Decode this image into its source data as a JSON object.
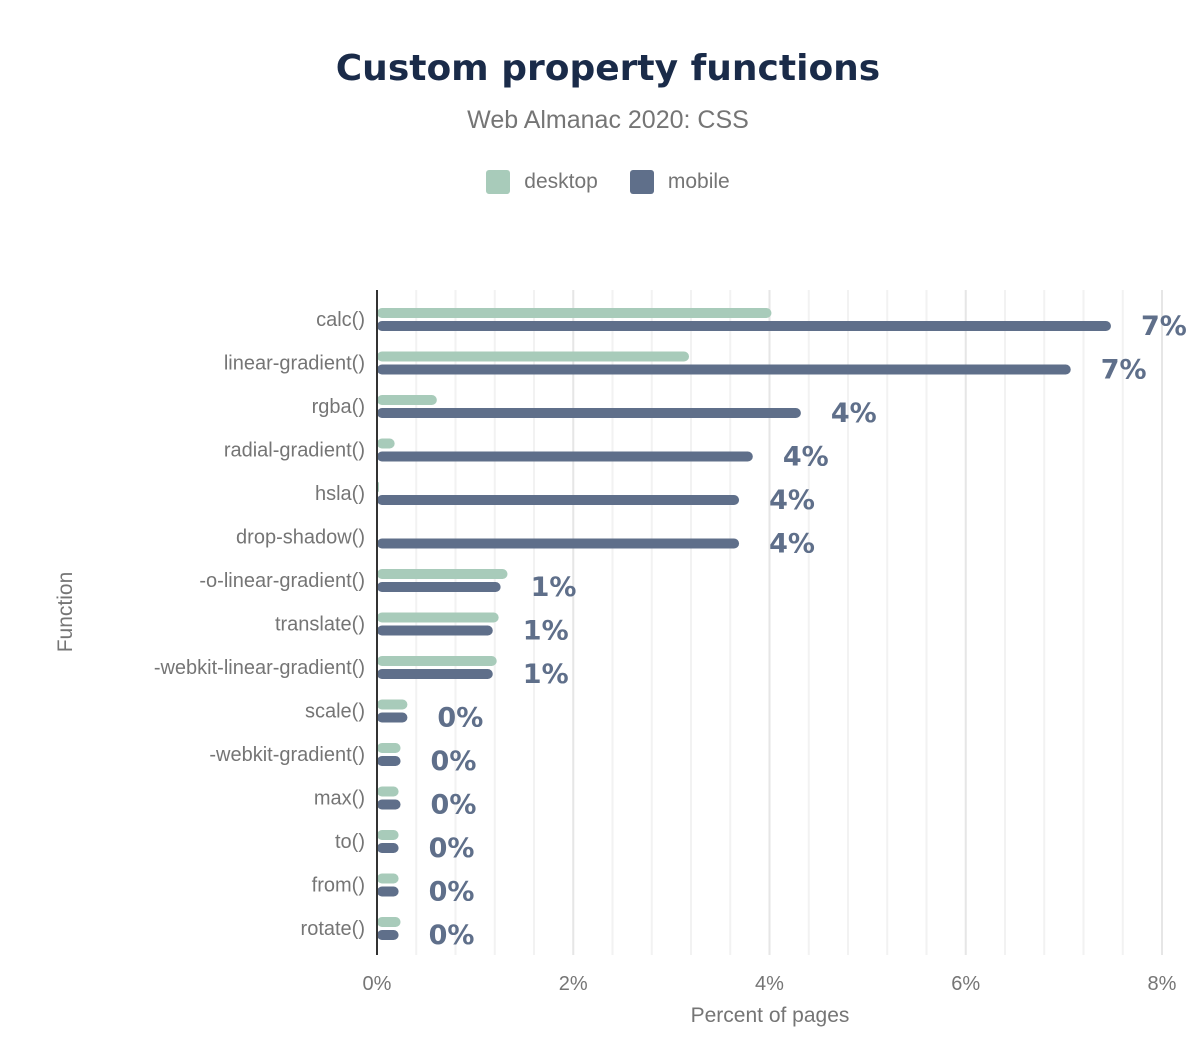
{
  "chart_data": {
    "type": "bar",
    "orientation": "horizontal",
    "title": "Custom property functions",
    "subtitle": "Web Almanac 2020: CSS",
    "xlabel": "Percent of pages",
    "ylabel": "Function",
    "xlim": [
      0,
      8
    ],
    "x_ticks": [
      "0%",
      "2%",
      "4%",
      "6%",
      "8%"
    ],
    "grid": true,
    "legend_position": "top",
    "categories": [
      "calc()",
      "linear-gradient()",
      "rgba()",
      "radial-gradient()",
      "hsla()",
      "drop-shadow()",
      "-o-linear-gradient()",
      "translate()",
      "-webkit-linear-gradient()",
      "scale()",
      "-webkit-gradient()",
      "max()",
      "to()",
      "from()",
      "rotate()"
    ],
    "series": [
      {
        "name": "desktop",
        "color": "#a8cbba",
        "values": [
          4.02,
          3.18,
          0.61,
          0.18,
          0.02,
          0.0,
          1.33,
          1.24,
          1.22,
          0.31,
          0.24,
          0.22,
          0.22,
          0.22,
          0.24
        ]
      },
      {
        "name": "mobile",
        "color": "#5f6f8a",
        "values": [
          7.48,
          7.07,
          4.32,
          3.83,
          3.69,
          3.69,
          1.26,
          1.18,
          1.18,
          0.31,
          0.24,
          0.24,
          0.22,
          0.22,
          0.22
        ],
        "data_labels": [
          "7%",
          "7%",
          "4%",
          "4%",
          "4%",
          "4%",
          "1%",
          "1%",
          "1%",
          "0%",
          "0%",
          "0%",
          "0%",
          "0%",
          "0%"
        ]
      }
    ]
  }
}
